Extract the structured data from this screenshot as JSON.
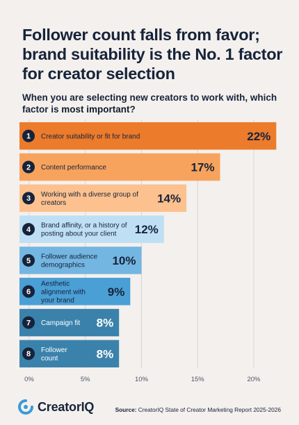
{
  "header": {
    "title": "Follower count falls from favor; brand suitability is the No. 1 factor for creator selection",
    "subtitle_part1": "When you are selecting new creators to work with, which factor is ",
    "subtitle_part2": "most important",
    "subtitle_part3": "?"
  },
  "chart_data": {
    "type": "bar",
    "orientation": "horizontal",
    "title": "When you are selecting new creators to work with, which factor is most important?",
    "categories": [
      "Creator suitability or fit for brand",
      "Content performance",
      "Working with a diverse group of creators",
      "Brand affinity, or a history of posting about your client",
      "Follower audience demographics",
      "Aesthetic alignment with your brand",
      "Campaign fit",
      "Follower count"
    ],
    "ranks": [
      "1",
      "2",
      "3",
      "4",
      "5",
      "6",
      "7",
      "8"
    ],
    "values": [
      22,
      17,
      14,
      12,
      10,
      9,
      8,
      8
    ],
    "value_labels": [
      "22%",
      "17%",
      "14%",
      "12%",
      "10%",
      "9%",
      "8%",
      "8%"
    ],
    "bar_colors": [
      "#ec7b2c",
      "#f7a35d",
      "#fcc18e",
      "#bfe0f4",
      "#74b6e2",
      "#4a9fd5",
      "#3a82ab",
      "#3a82ab"
    ],
    "label_colors": [
      "#16233a",
      "#16233a",
      "#16233a",
      "#16233a",
      "#16233a",
      "#16233a",
      "#ffffff",
      "#ffffff"
    ],
    "xlim": [
      0,
      23
    ],
    "xticks": [
      0,
      5,
      10,
      15,
      20
    ],
    "xtick_labels": [
      "0%",
      "5%",
      "10%",
      "15%",
      "20%"
    ],
    "grid": true
  },
  "footer": {
    "brand": "CreatorIQ",
    "source_label": "Source:",
    "source_text": " CreatorIQ State of Creator Marketing Report 2025-2026"
  },
  "colors": {
    "background": "#f4f0ed",
    "rank_badge": "#16233a",
    "grid": "#cfcfcf"
  }
}
